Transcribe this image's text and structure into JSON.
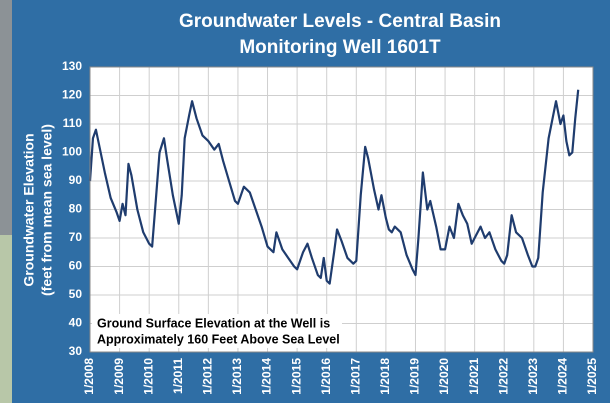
{
  "chart_data": {
    "type": "line",
    "title": [
      "Groundwater Levels - Central Basin",
      "Monitoring Well 1601T"
    ],
    "y_label": [
      "Groundwater Elevation",
      "(feet from mean sea level)"
    ],
    "annotation": [
      "Ground Surface Elevation at the Well is",
      "Approximately 160 Feet  Above Sea Level"
    ],
    "grid": true,
    "xlim": [
      2008,
      2025
    ],
    "xticks": [
      {
        "value": 2008,
        "label": "1/2008"
      },
      {
        "value": 2009,
        "label": "1/2009"
      },
      {
        "value": 2010,
        "label": "1/2010"
      },
      {
        "value": 2011,
        "label": "1/2011"
      },
      {
        "value": 2012,
        "label": "1/2012"
      },
      {
        "value": 2013,
        "label": "1/2013"
      },
      {
        "value": 2014,
        "label": "1/2014"
      },
      {
        "value": 2015,
        "label": "1/2015"
      },
      {
        "value": 2016,
        "label": "1/2016"
      },
      {
        "value": 2017,
        "label": "1/2017"
      },
      {
        "value": 2018,
        "label": "1/2018"
      },
      {
        "value": 2019,
        "label": "1/2019"
      },
      {
        "value": 2020,
        "label": "1/2020"
      },
      {
        "value": 2021,
        "label": "1/2021"
      },
      {
        "value": 2022,
        "label": "1/2022"
      },
      {
        "value": 2023,
        "label": "1/2023"
      },
      {
        "value": 2024,
        "label": "1/2024"
      },
      {
        "value": 2025,
        "label": "1/2025"
      }
    ],
    "ylim": [
      30,
      130
    ],
    "yticks": [
      30,
      40,
      50,
      60,
      70,
      80,
      90,
      100,
      110,
      120,
      130
    ],
    "x": [
      2008.0,
      2008.1,
      2008.2,
      2008.3,
      2008.5,
      2008.7,
      2008.9,
      2009.0,
      2009.1,
      2009.2,
      2009.3,
      2009.4,
      2009.6,
      2009.8,
      2010.0,
      2010.1,
      2010.2,
      2010.35,
      2010.5,
      2010.6,
      2010.8,
      2011.0,
      2011.1,
      2011.2,
      2011.35,
      2011.45,
      2011.6,
      2011.8,
      2012.0,
      2012.2,
      2012.35,
      2012.5,
      2012.7,
      2012.9,
      2013.0,
      2013.2,
      2013.4,
      2013.6,
      2013.8,
      2014.0,
      2014.2,
      2014.3,
      2014.5,
      2014.7,
      2014.9,
      2015.0,
      2015.2,
      2015.35,
      2015.5,
      2015.7,
      2015.8,
      2015.9,
      2016.0,
      2016.1,
      2016.25,
      2016.35,
      2016.5,
      2016.7,
      2016.9,
      2017.0,
      2017.15,
      2017.3,
      2017.4,
      2017.6,
      2017.75,
      2017.85,
      2018.0,
      2018.1,
      2018.2,
      2018.3,
      2018.5,
      2018.7,
      2018.9,
      2019.0,
      2019.1,
      2019.25,
      2019.4,
      2019.5,
      2019.7,
      2019.85,
      2020.0,
      2020.15,
      2020.3,
      2020.45,
      2020.6,
      2020.75,
      2020.9,
      2021.0,
      2021.2,
      2021.35,
      2021.5,
      2021.7,
      2021.9,
      2022.0,
      2022.1,
      2022.25,
      2022.4,
      2022.6,
      2022.8,
      2022.95,
      2023.05,
      2023.15,
      2023.3,
      2023.5,
      2023.75,
      2023.9,
      2024.0,
      2024.1,
      2024.2,
      2024.3,
      2024.4,
      2024.5
    ],
    "series": [
      {
        "color": "#1f3c6e",
        "values": [
          90,
          105,
          108,
          103,
          93,
          84,
          79,
          76,
          82,
          78,
          96,
          92,
          80,
          72,
          68,
          67,
          80,
          100,
          105,
          98,
          85,
          75,
          85,
          105,
          113,
          118,
          112,
          106,
          104,
          101,
          103,
          97,
          90,
          83,
          82,
          88,
          86,
          80,
          74,
          67,
          65,
          72,
          66,
          63,
          60,
          59,
          65,
          68,
          63,
          57,
          56,
          63,
          55,
          54,
          65,
          73,
          69,
          63,
          61,
          62,
          85,
          102,
          98,
          87,
          80,
          85,
          77,
          73,
          72,
          74,
          72,
          64,
          59,
          57,
          70,
          93,
          80,
          83,
          74,
          66,
          66,
          74,
          70,
          82,
          78,
          75,
          68,
          70,
          74,
          70,
          72,
          66,
          62,
          61,
          64,
          78,
          72,
          70,
          64,
          60,
          60,
          63,
          86,
          105,
          118,
          110,
          113,
          104,
          99,
          100,
          112,
          122
        ]
      }
    ]
  }
}
